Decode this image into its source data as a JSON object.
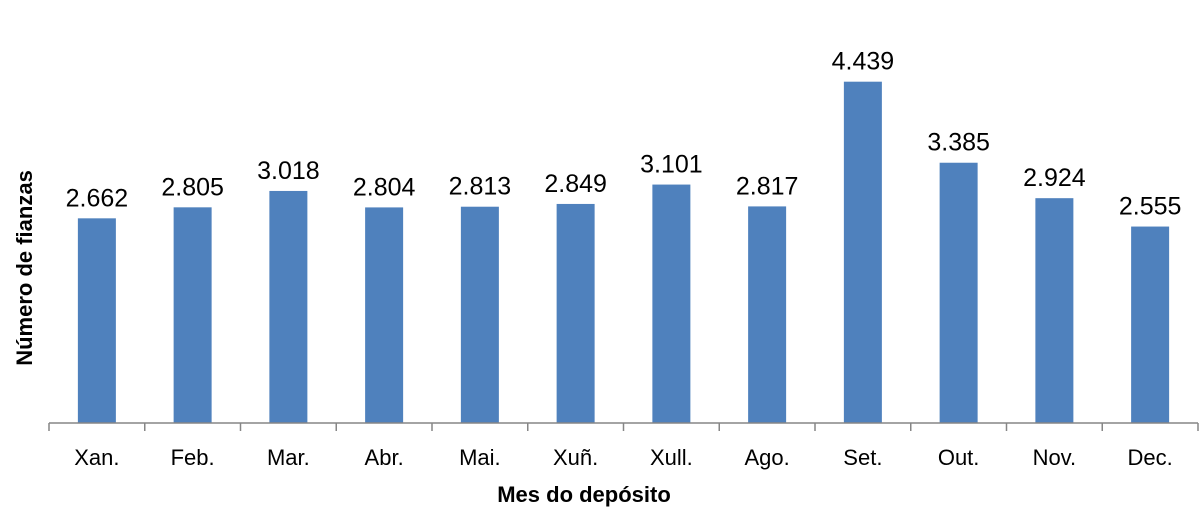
{
  "chart_data": {
    "type": "bar",
    "title": "",
    "xlabel": "Mes do depósito",
    "ylabel": "Número de fianzas",
    "categories": [
      "Xan.",
      "Feb.",
      "Mar.",
      "Abr.",
      "Mai.",
      "Xuñ.",
      "Xull.",
      "Ago.",
      "Set.",
      "Out.",
      "Nov.",
      "Dec."
    ],
    "values": [
      2662,
      2805,
      3018,
      2804,
      2813,
      2849,
      3101,
      2817,
      4439,
      3385,
      2924,
      2555
    ],
    "value_labels": [
      "2.662",
      "2.805",
      "3.018",
      "2.804",
      "2.813",
      "2.849",
      "3.101",
      "2.817",
      "4.439",
      "3.385",
      "2.924",
      "2.555"
    ],
    "ylim": [
      0,
      4500
    ],
    "grid": false,
    "legend": "none",
    "bar_color": "#4f81bd"
  }
}
